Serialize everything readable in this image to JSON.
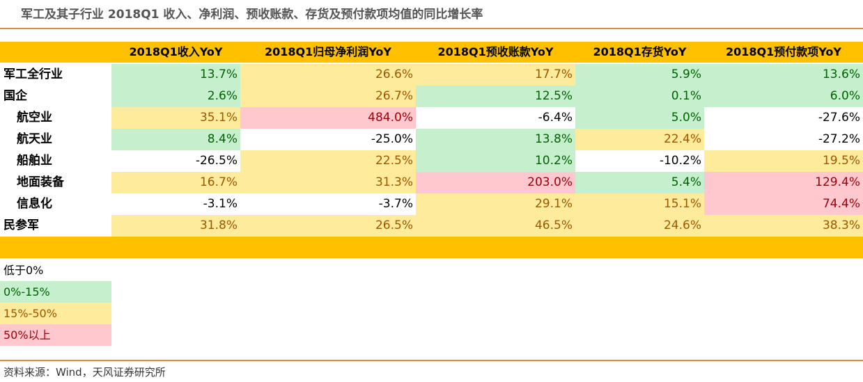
{
  "title": "军工及其子行业 2018Q1 收入、净利润、预收账款、存货及预付款项均值的同比增长率",
  "colors": {
    "header": "#ffc000",
    "rule": "#e08a3a",
    "neg": "#ffffff",
    "low": "#c6efce",
    "mid": "#ffeb9c",
    "high": "#ffc7ce",
    "text_neg": "#000000",
    "text_low": "#006100",
    "text_mid": "#9c5700",
    "text_high": "#9c0006"
  },
  "table": {
    "columns": [
      "2018Q1收入YoY",
      "2018Q1归母净利润YoY",
      "2018Q1预收账款YoY",
      "2018Q1存货YoY",
      "2018Q1预付款项YoY"
    ],
    "rows": [
      {
        "label": "军工全行业",
        "values": [
          "13.7%",
          "26.6%",
          "17.7%",
          "5.9%",
          "13.6%"
        ],
        "levels": [
          "low",
          "mid",
          "mid",
          "low",
          "low"
        ]
      },
      {
        "label": "国企",
        "values": [
          "2.6%",
          "26.7%",
          "12.5%",
          "0.1%",
          "6.0%"
        ],
        "levels": [
          "low",
          "mid",
          "low",
          "low",
          "low"
        ]
      },
      {
        "label": "航空业",
        "values": [
          "35.1%",
          "484.0%",
          "-6.4%",
          "5.0%",
          "-27.6%"
        ],
        "levels": [
          "mid",
          "high",
          "neg",
          "low",
          "neg"
        ]
      },
      {
        "label": "航天业",
        "values": [
          "8.4%",
          "-25.0%",
          "13.8%",
          "22.4%",
          "-27.2%"
        ],
        "levels": [
          "low",
          "neg",
          "low",
          "mid",
          "neg"
        ]
      },
      {
        "label": "船舶业",
        "values": [
          "-26.5%",
          "22.5%",
          "10.2%",
          "-10.2%",
          "19.5%"
        ],
        "levels": [
          "neg",
          "mid",
          "low",
          "neg",
          "mid"
        ]
      },
      {
        "label": "地面装备",
        "values": [
          "16.7%",
          "31.3%",
          "203.0%",
          "5.4%",
          "129.4%"
        ],
        "levels": [
          "mid",
          "mid",
          "high",
          "low",
          "high"
        ]
      },
      {
        "label": "信息化",
        "values": [
          "-3.1%",
          "-3.7%",
          "29.1%",
          "15.1%",
          "74.4%"
        ],
        "levels": [
          "neg",
          "neg",
          "mid",
          "mid",
          "high"
        ]
      },
      {
        "label": "民参军",
        "values": [
          "31.8%",
          "26.5%",
          "46.5%",
          "24.6%",
          "38.3%"
        ],
        "levels": [
          "mid",
          "mid",
          "mid",
          "mid",
          "mid"
        ]
      }
    ]
  },
  "legend": [
    {
      "label": "低于0%",
      "level": "neg"
    },
    {
      "label": "0%-15%",
      "level": "low"
    },
    {
      "label": "15%-50%",
      "level": "mid"
    },
    {
      "label": "50%以上",
      "level": "high"
    }
  ],
  "source": "资料来源：Wind，天风证券研究所"
}
